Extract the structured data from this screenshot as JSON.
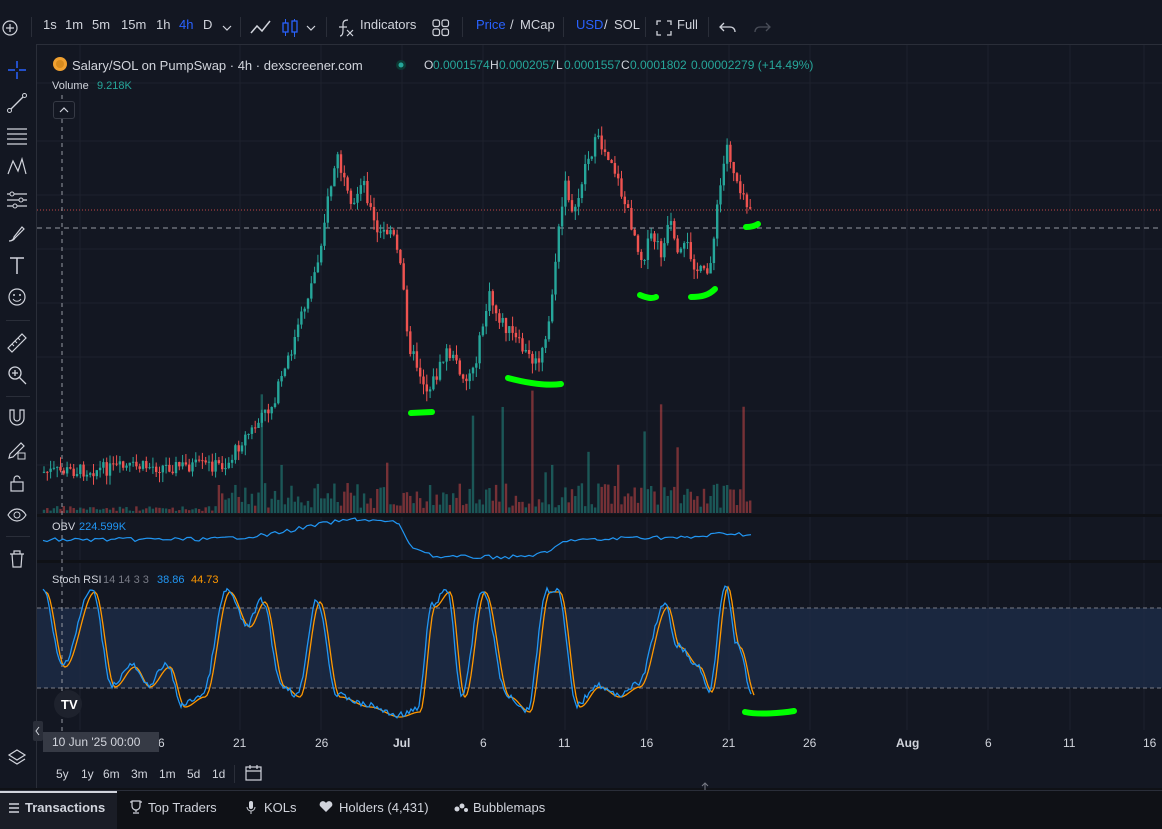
{
  "toolbar": {
    "intervals": [
      "1s",
      "1m",
      "5m",
      "15m",
      "1h",
      "4h",
      "D"
    ],
    "active_interval": "4h",
    "indicators_label": "Indicators",
    "price_label": "Price",
    "mcap_label": "MCap",
    "usd_label": "USD",
    "sol_label": "SOL",
    "slash": "/",
    "full_label": "Full"
  },
  "legend": {
    "title": "Salary/SOL on PumpSwap · 4h · dexscreener.com",
    "o_key": "O",
    "o_val": "0.0001574",
    "h_key": "H",
    "h_val": "0.0002057",
    "l_key": "L",
    "l_val": "0.0001557",
    "c_key": "C",
    "c_val": "0.0001802",
    "change": "0.00002279 (+14.49%)",
    "volume_label": "Volume",
    "volume_val": "9.218K",
    "obv_label": "OBV",
    "obv_val": "224.599K",
    "stoch_label": "Stoch RSI",
    "stoch_params": "14 14 3 3",
    "stoch_k": "38.86",
    "stoch_d": "44.73"
  },
  "time_axis": {
    "crosshair_label": "10 Jun '25   00:00",
    "ticks": [
      "6",
      "21",
      "26",
      "Jul",
      "6",
      "11",
      "16",
      "21",
      "26",
      "Aug",
      "6",
      "11",
      "16"
    ]
  },
  "ranges": [
    "5y",
    "1y",
    "6m",
    "3m",
    "1m",
    "5d",
    "1d"
  ],
  "bottom_tabs": [
    {
      "label": "Transactions",
      "icon": "list-icon"
    },
    {
      "label": "Top Traders",
      "icon": "trophy-icon"
    },
    {
      "label": "KOLs",
      "icon": "mic-icon"
    },
    {
      "label": "Holders (4,431)",
      "icon": "heart-icon"
    },
    {
      "label": "Bubblemaps",
      "icon": "bubbles-icon"
    }
  ],
  "colors": {
    "up": "#26a69a",
    "down": "#ef5350",
    "obv": "#2196f3",
    "stoch_k": "#2196f3",
    "stoch_d": "#ff9800",
    "annotation": "#00ff00",
    "accent": "#2962ff"
  },
  "left_tools": [
    "crosshair-icon",
    "trendline-icon",
    "fib-icon",
    "pattern-icon",
    "projection-icon",
    "brush-icon",
    "text-icon",
    "emoji-icon",
    "ruler-icon",
    "zoom-icon",
    "magnet-icon",
    "lock-drawings-icon",
    "lock-icon",
    "eye-icon",
    "trash-icon",
    "layers-icon"
  ]
}
